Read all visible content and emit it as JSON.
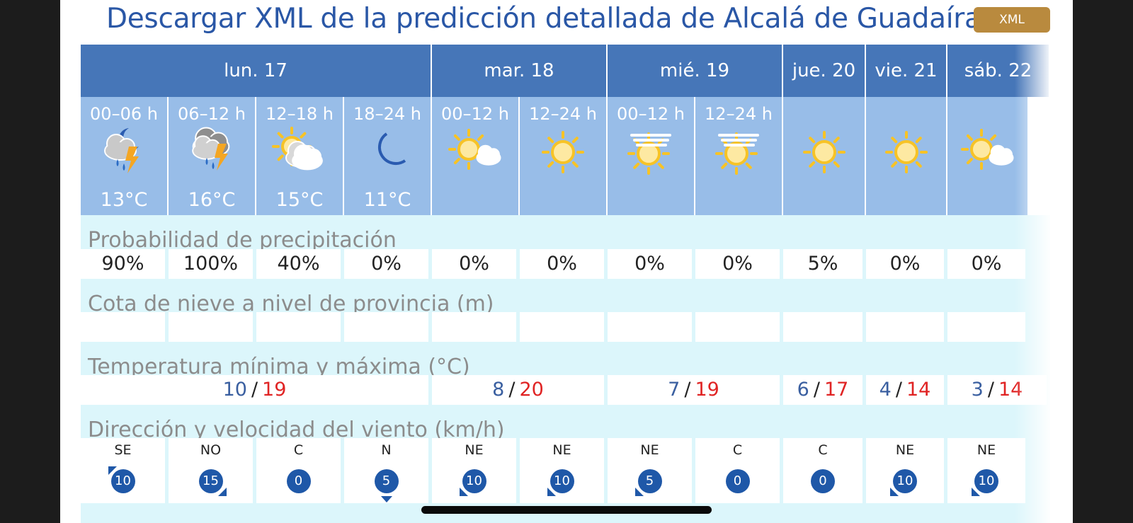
{
  "header": {
    "title": "Descargar XML de la predicción detallada de Alcalá de Guadaíra",
    "xml_button": "XML"
  },
  "days": [
    {
      "label": "lun. 17"
    },
    {
      "label": "mar. 18"
    },
    {
      "label": "mié. 19"
    },
    {
      "label": "jue. 20"
    },
    {
      "label": "vie. 21"
    },
    {
      "label": "sáb. 22"
    }
  ],
  "periods": [
    {
      "label": "00–06 h",
      "icon": "moon-cloud-storm-icon",
      "temp": "13°C"
    },
    {
      "label": "06–12 h",
      "icon": "cloud-storm-icon",
      "temp": "16°C"
    },
    {
      "label": "12–18 h",
      "icon": "sun-cloud-icon",
      "temp": "15°C"
    },
    {
      "label": "18–24 h",
      "icon": "moon-icon",
      "temp": "11°C"
    },
    {
      "label": "00–12 h",
      "icon": "sun-small-cloud-icon",
      "temp": ""
    },
    {
      "label": "12–24 h",
      "icon": "sun-icon",
      "temp": ""
    },
    {
      "label": "00–12 h",
      "icon": "sun-haze-icon",
      "temp": ""
    },
    {
      "label": "12–24 h",
      "icon": "sun-haze-icon",
      "temp": ""
    },
    {
      "label": "",
      "icon": "sun-icon",
      "temp": ""
    },
    {
      "label": "",
      "icon": "sun-icon",
      "temp": ""
    },
    {
      "label": "",
      "icon": "sun-small-cloud-icon",
      "temp": ""
    }
  ],
  "precip": {
    "title": "Probabilidad de precipitación",
    "values": [
      "90%",
      "100%",
      "40%",
      "0%",
      "0%",
      "0%",
      "0%",
      "0%",
      "5%",
      "0%",
      "0%"
    ]
  },
  "snow": {
    "title": "Cota de nieve a nivel de provincia (m)",
    "values": [
      "",
      "",
      "",
      "",
      "",
      "",
      "",
      "",
      "",
      "",
      ""
    ]
  },
  "temps": {
    "title": "Temperatura mínima y máxima (°C)",
    "values": [
      {
        "min": "10",
        "max": "19"
      },
      {
        "min": "8",
        "max": "20"
      },
      {
        "min": "7",
        "max": "19"
      },
      {
        "min": "6",
        "max": "17"
      },
      {
        "min": "4",
        "max": "14"
      },
      {
        "min": "3",
        "max": "14"
      }
    ],
    "separator": "/"
  },
  "wind": {
    "title": "Dirección y velocidad del viento (km/h)",
    "values": [
      {
        "dir": "SE",
        "speed": "10",
        "arrow": "arrow-nw-icon"
      },
      {
        "dir": "NO",
        "speed": "15",
        "arrow": "arrow-se-icon"
      },
      {
        "dir": "C",
        "speed": "0",
        "arrow": ""
      },
      {
        "dir": "N",
        "speed": "5",
        "arrow": "arrow-s-icon"
      },
      {
        "dir": "NE",
        "speed": "10",
        "arrow": "arrow-sw-icon"
      },
      {
        "dir": "NE",
        "speed": "10",
        "arrow": "arrow-sw-icon"
      },
      {
        "dir": "NE",
        "speed": "5",
        "arrow": "arrow-sw-icon"
      },
      {
        "dir": "C",
        "speed": "0",
        "arrow": ""
      },
      {
        "dir": "C",
        "speed": "0",
        "arrow": ""
      },
      {
        "dir": "NE",
        "speed": "10",
        "arrow": "arrow-sw-icon"
      },
      {
        "dir": "NE",
        "speed": "10",
        "arrow": "arrow-sw-icon"
      }
    ]
  },
  "colors": {
    "header_blue": "#4676b8",
    "period_blue": "#98bde8",
    "band_cyan": "#dcf6fb",
    "xml_gold": "#b98a3e",
    "max_red": "#e02424",
    "min_blue": "#3a5fa0",
    "wind_badge": "#1f58a8"
  }
}
